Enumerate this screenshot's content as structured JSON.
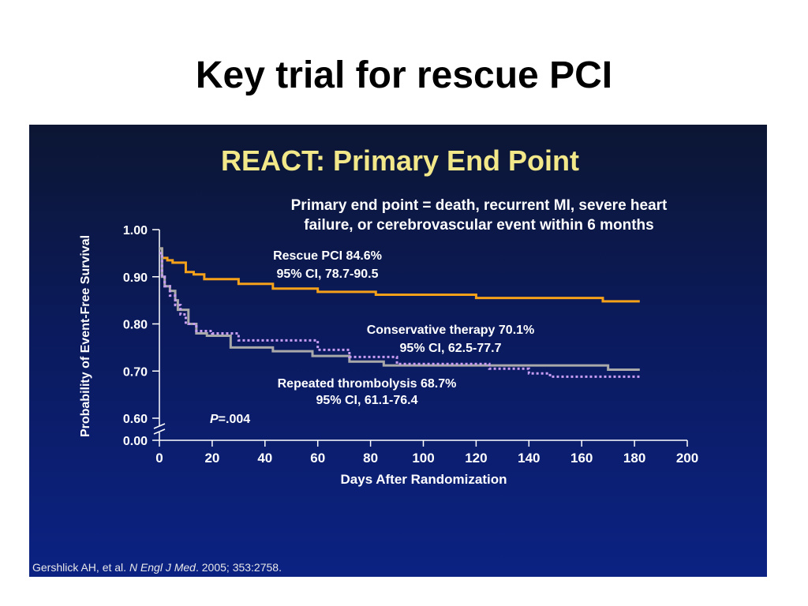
{
  "slide": {
    "title": "Key trial for rescue PCI",
    "citation_author": "Gershlick AH, et al.",
    "citation_journal": "N Engl J Med",
    "citation_ref": ". 2005; 353:2758."
  },
  "chart_data": {
    "type": "line",
    "title": "REACT: Primary End Point",
    "subtitle_lines": [
      "Primary end point = death, recurrent MI, severe heart",
      "failure, or cerebrovascular event within 6 months"
    ],
    "xlabel": "Days After Randomization",
    "ylabel": "Probability of Event-Free Survival",
    "xlim": [
      0,
      200
    ],
    "ylim": [
      0.6,
      1.0
    ],
    "x_ticks": [
      "0",
      "20",
      "40",
      "60",
      "80",
      "100",
      "120",
      "140",
      "160",
      "180",
      "200"
    ],
    "y_ticks": [
      "1.00",
      "0.90",
      "0.80",
      "0.70",
      "0.60",
      "0.00"
    ],
    "axis_break": true,
    "step": true,
    "series": [
      {
        "name": "Rescue PCI",
        "color": "#f5a11a",
        "dash": "solid",
        "label_lines": [
          "Rescue PCI 84.6%",
          "95% CI, 78.7-90.5"
        ],
        "points": [
          [
            0,
            0.96
          ],
          [
            1,
            0.94
          ],
          [
            3,
            0.935
          ],
          [
            5,
            0.93
          ],
          [
            10,
            0.91
          ],
          [
            13,
            0.905
          ],
          [
            17,
            0.895
          ],
          [
            30,
            0.885
          ],
          [
            43,
            0.875
          ],
          [
            60,
            0.868
          ],
          [
            82,
            0.862
          ],
          [
            120,
            0.855
          ],
          [
            168,
            0.848
          ],
          [
            182,
            0.848
          ]
        ]
      },
      {
        "name": "Conservative therapy",
        "color": "#a9a9a9",
        "dash": "solid",
        "label_lines": [
          "Conservative therapy 70.1%",
          "95% CI, 62.5-77.7"
        ],
        "points": [
          [
            0,
            0.96
          ],
          [
            1,
            0.9
          ],
          [
            2,
            0.88
          ],
          [
            4,
            0.87
          ],
          [
            6,
            0.85
          ],
          [
            7,
            0.83
          ],
          [
            11,
            0.8
          ],
          [
            14,
            0.78
          ],
          [
            18,
            0.775
          ],
          [
            27,
            0.75
          ],
          [
            43,
            0.742
          ],
          [
            58,
            0.732
          ],
          [
            72,
            0.72
          ],
          [
            85,
            0.712
          ],
          [
            170,
            0.703
          ],
          [
            182,
            0.703
          ]
        ]
      },
      {
        "name": "Repeated thrombolysis",
        "color": "#c79df2",
        "dash": "dotted",
        "label_lines": [
          "Repeated thrombolysis 68.7%",
          "95% CI, 61.1-76.4"
        ],
        "points": [
          [
            0,
            0.95
          ],
          [
            1,
            0.9
          ],
          [
            2,
            0.88
          ],
          [
            4,
            0.86
          ],
          [
            6,
            0.84
          ],
          [
            8,
            0.82
          ],
          [
            10,
            0.8
          ],
          [
            14,
            0.785
          ],
          [
            20,
            0.78
          ],
          [
            30,
            0.765
          ],
          [
            60,
            0.745
          ],
          [
            72,
            0.73
          ],
          [
            90,
            0.715
          ],
          [
            125,
            0.705
          ],
          [
            140,
            0.695
          ],
          [
            148,
            0.688
          ],
          [
            182,
            0.688
          ]
        ]
      }
    ],
    "annotation": {
      "italic": "P",
      "rest": "=.004"
    }
  }
}
